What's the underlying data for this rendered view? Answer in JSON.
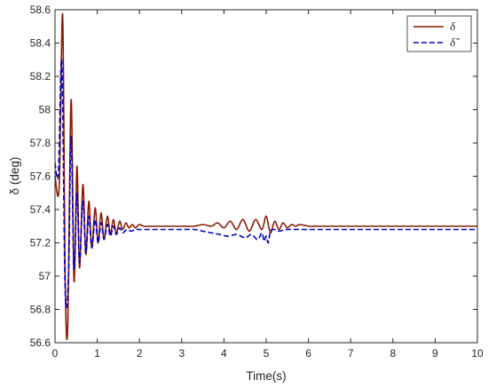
{
  "chart_data": {
    "type": "line",
    "title": "",
    "xlabel": "Time(s)",
    "ylabel": "δ (deg)",
    "xlim": [
      0,
      10
    ],
    "ylim": [
      56.6,
      58.6
    ],
    "x_ticks": [
      0,
      1,
      2,
      3,
      4,
      5,
      6,
      7,
      8,
      9,
      10
    ],
    "y_ticks": [
      56.6,
      56.8,
      57,
      57.2,
      57.4,
      57.6,
      57.8,
      58,
      58.2,
      58.4,
      58.6
    ],
    "grid": false,
    "legend_position": "top-right",
    "series": [
      {
        "name": "δ",
        "color": "#8b1a00",
        "style": "solid",
        "x": [
          0,
          0.1,
          0.18,
          0.24,
          0.3,
          0.38,
          0.45,
          0.52,
          0.58,
          0.66,
          0.73,
          0.8,
          0.87,
          0.95,
          1.02,
          1.09,
          1.16,
          1.24,
          1.31,
          1.38,
          1.45,
          1.53,
          1.6,
          1.68,
          1.75,
          1.83,
          1.9,
          2.0,
          2.1,
          2.3,
          2.6,
          3.0,
          3.3,
          3.5,
          3.7,
          3.85,
          4.0,
          4.15,
          4.3,
          4.45,
          4.6,
          4.75,
          4.9,
          5.0,
          5.1,
          5.2,
          5.3,
          5.4,
          5.5,
          5.6,
          5.7,
          5.8,
          6.0,
          6.2,
          6.5,
          7.0,
          8.0,
          9.0,
          10.0
        ],
        "y": [
          57.6,
          57.54,
          58.57,
          57.0,
          56.69,
          58.06,
          56.97,
          57.66,
          57.05,
          57.55,
          57.13,
          57.45,
          57.17,
          57.41,
          57.2,
          57.38,
          57.22,
          57.36,
          57.25,
          57.34,
          57.26,
          57.33,
          57.28,
          57.32,
          57.29,
          57.31,
          57.29,
          57.31,
          57.3,
          57.3,
          57.3,
          57.3,
          57.3,
          57.31,
          57.3,
          57.32,
          57.29,
          57.33,
          57.28,
          57.34,
          57.27,
          57.34,
          57.28,
          57.36,
          57.26,
          57.33,
          57.28,
          57.32,
          57.29,
          57.31,
          57.3,
          57.31,
          57.3,
          57.3,
          57.3,
          57.3,
          57.3,
          57.3,
          57.3
        ]
      },
      {
        "name": "δ̂",
        "color": "#0000cc",
        "style": "dashed",
        "x": [
          0,
          0.08,
          0.16,
          0.24,
          0.32,
          0.38,
          0.45,
          0.52,
          0.58,
          0.66,
          0.73,
          0.8,
          0.87,
          0.95,
          1.02,
          1.09,
          1.16,
          1.24,
          1.31,
          1.38,
          1.45,
          1.53,
          1.6,
          1.7,
          1.8,
          1.9,
          2.0,
          2.2,
          2.5,
          3.0,
          3.3,
          3.5,
          3.7,
          3.9,
          4.1,
          4.3,
          4.5,
          4.65,
          4.8,
          4.9,
          4.95,
          5.0,
          5.05,
          5.1,
          5.2,
          5.3,
          5.5,
          6.0,
          7.0,
          8.0,
          9.0,
          10.0
        ],
        "y": [
          57.68,
          57.62,
          58.29,
          56.92,
          57.0,
          57.84,
          57.05,
          57.5,
          57.08,
          57.45,
          57.14,
          57.36,
          57.17,
          57.34,
          57.2,
          57.32,
          57.22,
          57.31,
          57.24,
          57.3,
          57.25,
          57.29,
          57.26,
          57.28,
          57.27,
          57.28,
          57.28,
          57.28,
          57.28,
          57.28,
          57.28,
          57.27,
          57.26,
          57.25,
          57.24,
          57.25,
          57.23,
          57.25,
          57.22,
          57.26,
          57.21,
          57.24,
          57.2,
          57.27,
          57.28,
          57.27,
          57.28,
          57.28,
          57.28,
          57.28,
          57.28,
          57.28
        ]
      }
    ]
  }
}
